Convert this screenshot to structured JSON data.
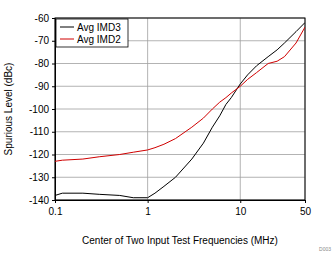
{
  "chart_data": {
    "type": "line",
    "x_label": "Center of Two Input Test Frequencies (MHz)",
    "y_label": "Spurious Level (dBc)",
    "annotation": "D003",
    "x": [
      0.1,
      0.12,
      0.2,
      0.3,
      0.5,
      0.7,
      1,
      1.2,
      1.5,
      2,
      3,
      4,
      5,
      6,
      7,
      8,
      10,
      12,
      15,
      20,
      25,
      30,
      40,
      50
    ],
    "series": [
      {
        "name": "Avg IMD3",
        "color": "#000000",
        "values": [
          -138,
          -137,
          -137,
          -137.5,
          -138,
          -139,
          -139,
          -137,
          -134,
          -130,
          -122,
          -115,
          -108,
          -103,
          -98,
          -95,
          -89,
          -85,
          -81,
          -77,
          -74,
          -71,
          -66,
          -62
        ]
      },
      {
        "name": "Avg IMD2",
        "color": "#d00000",
        "values": [
          -123,
          -122.5,
          -122,
          -121,
          -120,
          -119,
          -118,
          -117,
          -115.5,
          -113,
          -108,
          -104,
          -100,
          -97,
          -95,
          -93,
          -90,
          -87,
          -84,
          -80,
          -79,
          -77,
          -71,
          -64
        ]
      }
    ],
    "xlim": [
      0.1,
      50
    ],
    "xticks": [
      0.1,
      1,
      10,
      50
    ],
    "ylim": [
      -140,
      -60
    ],
    "yticks": [
      -140,
      -130,
      -120,
      -110,
      -100,
      -90,
      -80,
      -70,
      -60
    ],
    "log": "x",
    "grid": true,
    "legend": "upper left"
  }
}
